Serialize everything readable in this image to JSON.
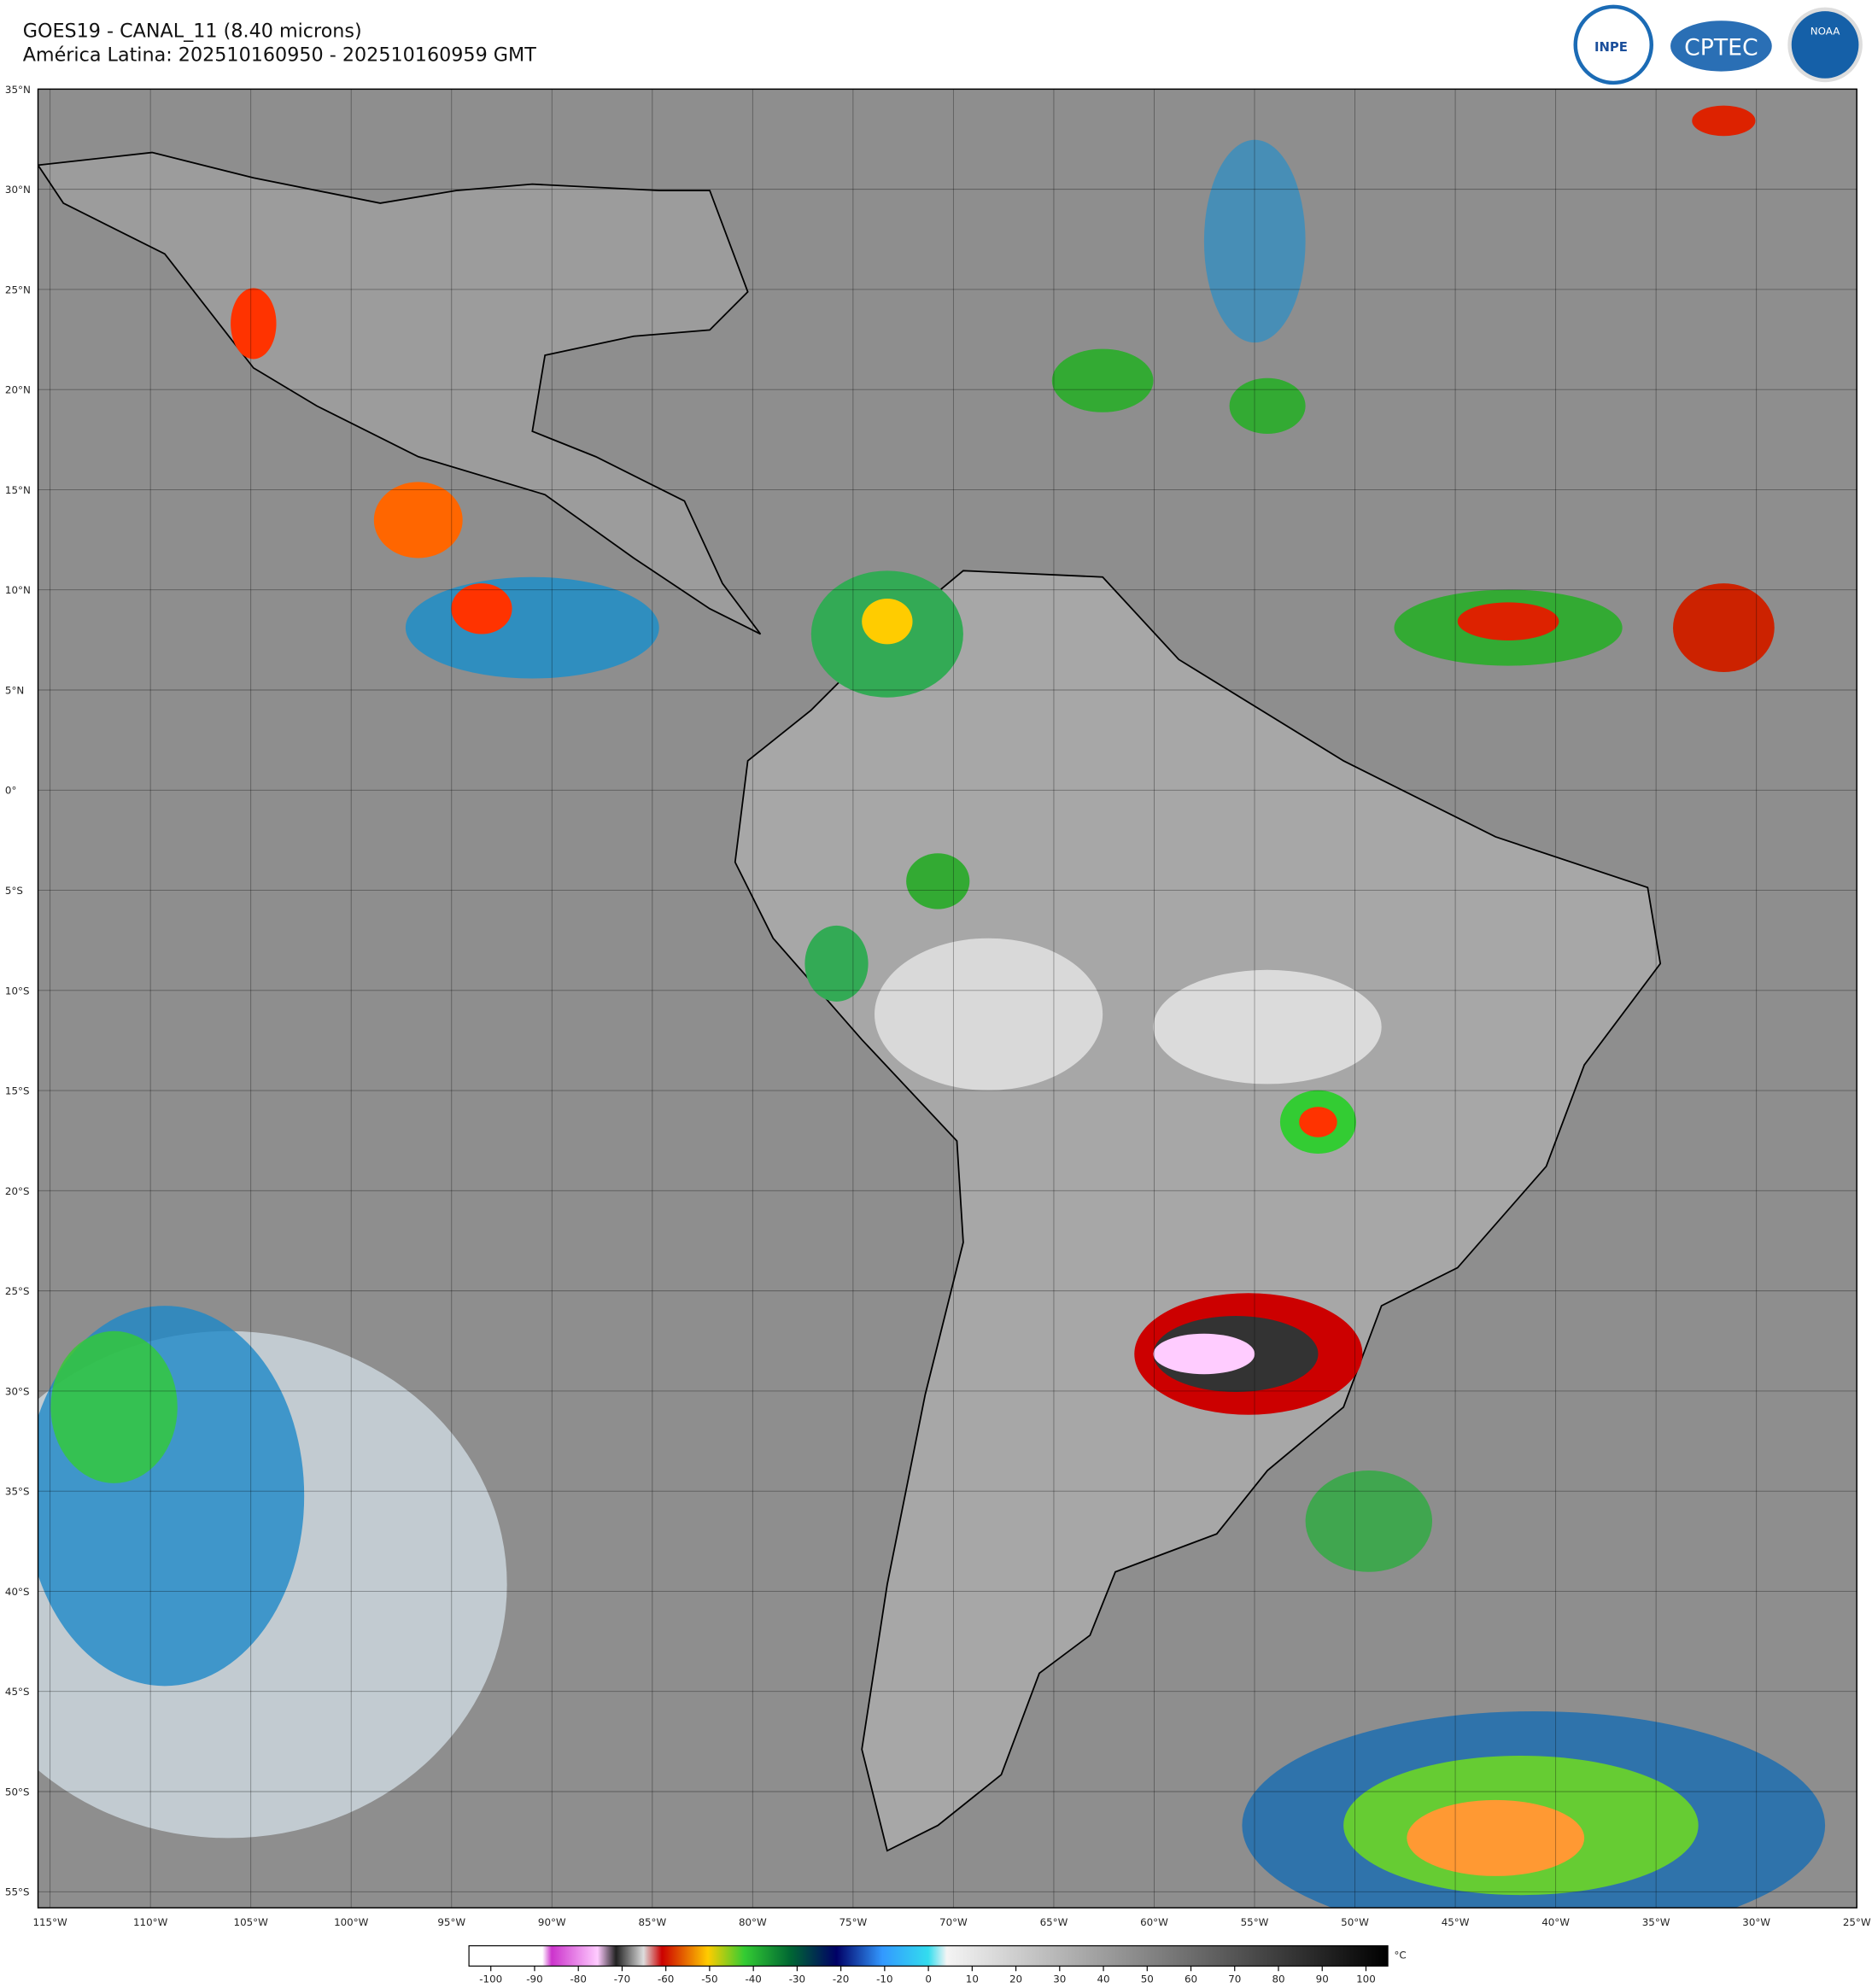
{
  "header": {
    "title": "GOES19 - CANAL_11 (8.40 microns)",
    "subtitle": "América Latina: 202510160950 - 202510160959 GMT"
  },
  "logos": [
    "INPE",
    "CPTEC",
    "NOAA"
  ],
  "map": {
    "lonlim": [
      -115.6,
      -25
    ],
    "latlim": [
      35,
      -55.8
    ],
    "lat_ticks": [
      {
        "value": 35,
        "label": "35°N"
      },
      {
        "value": 30,
        "label": "30°N"
      },
      {
        "value": 25,
        "label": "25°N"
      },
      {
        "value": 20,
        "label": "20°N"
      },
      {
        "value": 15,
        "label": "15°N"
      },
      {
        "value": 10,
        "label": "10°N"
      },
      {
        "value": 5,
        "label": "5°N"
      },
      {
        "value": 0,
        "label": "0°"
      },
      {
        "value": -5,
        "label": "5°S"
      },
      {
        "value": -10,
        "label": "10°S"
      },
      {
        "value": -15,
        "label": "15°S"
      },
      {
        "value": -20,
        "label": "20°S"
      },
      {
        "value": -25,
        "label": "25°S"
      },
      {
        "value": -30,
        "label": "30°S"
      },
      {
        "value": -35,
        "label": "35°S"
      },
      {
        "value": -40,
        "label": "40°S"
      },
      {
        "value": -45,
        "label": "45°S"
      },
      {
        "value": -50,
        "label": "50°S"
      },
      {
        "value": -55,
        "label": "55°S"
      }
    ],
    "lon_ticks": [
      {
        "value": -115,
        "label": "115°W"
      },
      {
        "value": -110,
        "label": "110°W"
      },
      {
        "value": -105,
        "label": "105°W"
      },
      {
        "value": -100,
        "label": "100°W"
      },
      {
        "value": -95,
        "label": "95°W"
      },
      {
        "value": -90,
        "label": "90°W"
      },
      {
        "value": -85,
        "label": "85°W"
      },
      {
        "value": -80,
        "label": "80°W"
      },
      {
        "value": -75,
        "label": "75°W"
      },
      {
        "value": -70,
        "label": "70°W"
      },
      {
        "value": -65,
        "label": "65°W"
      },
      {
        "value": -60,
        "label": "60°W"
      },
      {
        "value": -55,
        "label": "55°W"
      },
      {
        "value": -50,
        "label": "50°W"
      },
      {
        "value": -45,
        "label": "45°W"
      },
      {
        "value": -40,
        "label": "40°W"
      },
      {
        "value": -35,
        "label": "35°W"
      },
      {
        "value": -30,
        "label": "30°W"
      },
      {
        "value": -25,
        "label": "25°W"
      }
    ]
  },
  "colorbar": {
    "lim": [
      -105,
      105
    ],
    "ticks": [
      -100,
      -90,
      -80,
      -70,
      -60,
      -50,
      -40,
      -30,
      -20,
      -10,
      0,
      10,
      20,
      30,
      40,
      50,
      60,
      70,
      80,
      90,
      100
    ],
    "unit": "°C"
  }
}
